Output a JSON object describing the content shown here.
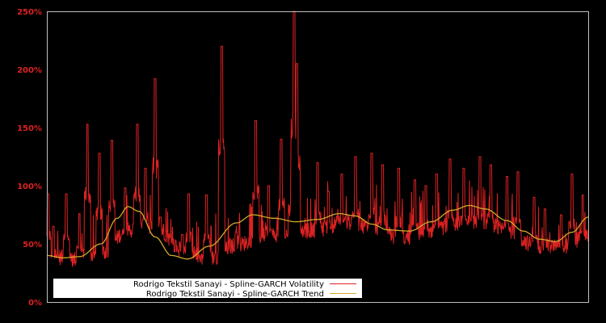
{
  "chart_data": {
    "type": "line",
    "title": "",
    "xlabel": "",
    "ylabel": "",
    "ylim": [
      0,
      250
    ],
    "y_ticks": [
      "0%",
      "50%",
      "100%",
      "150%",
      "200%",
      "250%"
    ],
    "y_tick_values": [
      0,
      50,
      100,
      150,
      200,
      250
    ],
    "grid": false,
    "legend_position": "lower left",
    "colors": {
      "background": "#000000",
      "volatility": "#dd2222",
      "trend": "#d4a82a",
      "axis_frame": "#c0c0c0",
      "tick_label": "#dd2222",
      "legend_bg": "#ffffff"
    },
    "series": [
      {
        "name": "Rodrigo Tekstil Sanayi - Spline-GARCH Volatility",
        "note": "noisy daily series; baseline + spikes (x as fraction of plot width 0..1, y in %)",
        "baseline": [
          [
            0.0,
            33
          ],
          [
            0.05,
            30
          ],
          [
            0.1,
            35
          ],
          [
            0.15,
            55
          ],
          [
            0.2,
            58
          ],
          [
            0.25,
            38
          ],
          [
            0.3,
            30
          ],
          [
            0.35,
            42
          ],
          [
            0.4,
            50
          ],
          [
            0.45,
            52
          ],
          [
            0.5,
            55
          ],
          [
            0.55,
            62
          ],
          [
            0.6,
            58
          ],
          [
            0.65,
            48
          ],
          [
            0.7,
            50
          ],
          [
            0.75,
            60
          ],
          [
            0.8,
            63
          ],
          [
            0.85,
            55
          ],
          [
            0.9,
            42
          ],
          [
            0.95,
            40
          ],
          [
            1.0,
            50
          ]
        ],
        "spikes": [
          [
            0.002,
            93
          ],
          [
            0.012,
            65
          ],
          [
            0.036,
            93
          ],
          [
            0.06,
            76
          ],
          [
            0.075,
            153
          ],
          [
            0.097,
            128
          ],
          [
            0.12,
            139
          ],
          [
            0.145,
            98
          ],
          [
            0.167,
            153
          ],
          [
            0.182,
            115
          ],
          [
            0.2,
            192
          ],
          [
            0.21,
            73
          ],
          [
            0.25,
            58
          ],
          [
            0.262,
            93
          ],
          [
            0.295,
            92
          ],
          [
            0.323,
            220
          ],
          [
            0.35,
            60
          ],
          [
            0.386,
            156
          ],
          [
            0.41,
            100
          ],
          [
            0.433,
            140
          ],
          [
            0.452,
            130
          ],
          [
            0.457,
            250
          ],
          [
            0.462,
            205
          ],
          [
            0.5,
            120
          ],
          [
            0.52,
            95
          ],
          [
            0.545,
            110
          ],
          [
            0.57,
            125
          ],
          [
            0.6,
            128
          ],
          [
            0.62,
            118
          ],
          [
            0.65,
            115
          ],
          [
            0.68,
            105
          ],
          [
            0.7,
            100
          ],
          [
            0.72,
            110
          ],
          [
            0.745,
            123
          ],
          [
            0.77,
            115
          ],
          [
            0.8,
            125
          ],
          [
            0.82,
            118
          ],
          [
            0.85,
            108
          ],
          [
            0.87,
            112
          ],
          [
            0.9,
            90
          ],
          [
            0.92,
            80
          ],
          [
            0.95,
            75
          ],
          [
            0.97,
            110
          ],
          [
            0.99,
            92
          ]
        ]
      },
      {
        "name": "Rodrigo Tekstil Sanayi - Spline-GARCH Trend",
        "points": [
          [
            0.0,
            40
          ],
          [
            0.03,
            38
          ],
          [
            0.06,
            39
          ],
          [
            0.1,
            50
          ],
          [
            0.13,
            72
          ],
          [
            0.15,
            82
          ],
          [
            0.17,
            78
          ],
          [
            0.2,
            56
          ],
          [
            0.23,
            40
          ],
          [
            0.26,
            37
          ],
          [
            0.3,
            48
          ],
          [
            0.35,
            68
          ],
          [
            0.38,
            75
          ],
          [
            0.42,
            72
          ],
          [
            0.46,
            69
          ],
          [
            0.5,
            71
          ],
          [
            0.54,
            76
          ],
          [
            0.57,
            74
          ],
          [
            0.6,
            67
          ],
          [
            0.63,
            62
          ],
          [
            0.67,
            61
          ],
          [
            0.71,
            69
          ],
          [
            0.75,
            79
          ],
          [
            0.78,
            83
          ],
          [
            0.81,
            80
          ],
          [
            0.85,
            70
          ],
          [
            0.88,
            61
          ],
          [
            0.91,
            54
          ],
          [
            0.94,
            52
          ],
          [
            0.97,
            60
          ],
          [
            1.0,
            73
          ]
        ]
      }
    ]
  },
  "legend": {
    "items": [
      {
        "label": "Rodrigo Tekstil Sanayi - Spline-GARCH Volatility",
        "color": "#dd2222"
      },
      {
        "label": "Rodrigo Tekstil Sanayi - Spline-GARCH Trend",
        "color": "#d4a82a"
      }
    ]
  }
}
